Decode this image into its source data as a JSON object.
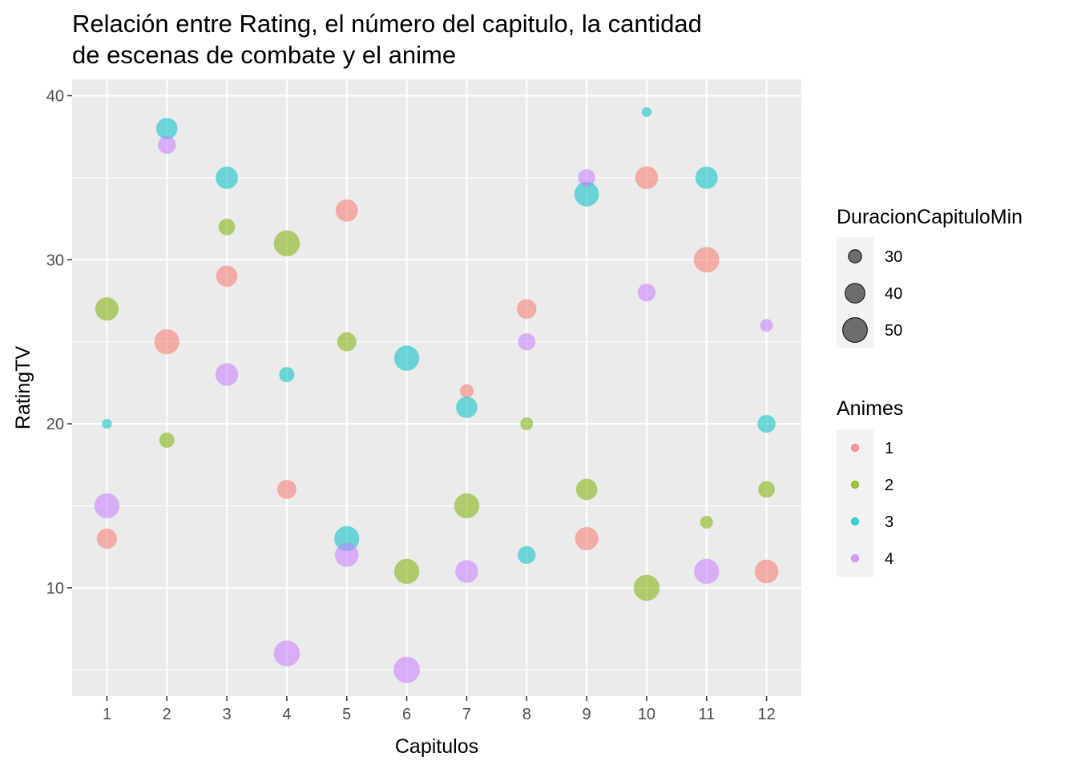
{
  "chart_data": {
    "type": "scatter",
    "title_lines": [
      "Relación entre Rating, el número del capitulo, la cantidad",
      "de escenas de combate y el anime"
    ],
    "xlabel": "Capitulos",
    "ylabel": "RatingTV",
    "xlim": [
      0.42,
      12.58
    ],
    "ylim": [
      3.4,
      41.0
    ],
    "x_ticks": [
      1,
      2,
      3,
      4,
      5,
      6,
      7,
      8,
      9,
      10,
      11,
      12
    ],
    "y_ticks": [
      10,
      20,
      30,
      40
    ],
    "grid": true,
    "legend_position": "right",
    "size_legend": {
      "title": "DuracionCapituloMin",
      "entries": [
        {
          "label": "30",
          "value": 30
        },
        {
          "label": "40",
          "value": 40
        },
        {
          "label": "50",
          "value": 50
        }
      ]
    },
    "color_legend": {
      "title": "Animes",
      "entries": [
        {
          "label": "1",
          "color": "#F8766D"
        },
        {
          "label": "2",
          "color": "#7CAE00"
        },
        {
          "label": "3",
          "color": "#00BFC4"
        },
        {
          "label": "4",
          "color": "#C77CFF"
        }
      ]
    },
    "series": [
      {
        "anime": "1",
        "color": "#F8766D",
        "points": [
          {
            "x": 1,
            "y": 13,
            "duration": 40
          },
          {
            "x": 2,
            "y": 25,
            "duration": 50
          },
          {
            "x": 3,
            "y": 29,
            "duration": 42
          },
          {
            "x": 4,
            "y": 16,
            "duration": 38
          },
          {
            "x": 5,
            "y": 33,
            "duration": 44
          },
          {
            "x": 7,
            "y": 22,
            "duration": 30
          },
          {
            "x": 8,
            "y": 27,
            "duration": 39
          },
          {
            "x": 9,
            "y": 13,
            "duration": 46
          },
          {
            "x": 10,
            "y": 35,
            "duration": 45
          },
          {
            "x": 11,
            "y": 30,
            "duration": 51
          },
          {
            "x": 12,
            "y": 11,
            "duration": 47
          }
        ]
      },
      {
        "anime": "2",
        "color": "#7CAE00",
        "points": [
          {
            "x": 1,
            "y": 27,
            "duration": 46
          },
          {
            "x": 2,
            "y": 19,
            "duration": 32
          },
          {
            "x": 3,
            "y": 32,
            "duration": 34
          },
          {
            "x": 4,
            "y": 31,
            "duration": 52
          },
          {
            "x": 5,
            "y": 25,
            "duration": 38
          },
          {
            "x": 6,
            "y": 11,
            "duration": 50
          },
          {
            "x": 7,
            "y": 15,
            "duration": 50
          },
          {
            "x": 8,
            "y": 20,
            "duration": 29
          },
          {
            "x": 9,
            "y": 16,
            "duration": 42
          },
          {
            "x": 10,
            "y": 10,
            "duration": 52
          },
          {
            "x": 11,
            "y": 14,
            "duration": 29
          },
          {
            "x": 12,
            "y": 16,
            "duration": 34
          }
        ]
      },
      {
        "anime": "3",
        "color": "#00BFC4",
        "points": [
          {
            "x": 1,
            "y": 20,
            "duration": 26
          },
          {
            "x": 2,
            "y": 38,
            "duration": 42
          },
          {
            "x": 3,
            "y": 35,
            "duration": 44
          },
          {
            "x": 4,
            "y": 23,
            "duration": 32
          },
          {
            "x": 5,
            "y": 13,
            "duration": 50
          },
          {
            "x": 6,
            "y": 24,
            "duration": 50
          },
          {
            "x": 7,
            "y": 21,
            "duration": 42
          },
          {
            "x": 8,
            "y": 12,
            "duration": 36
          },
          {
            "x": 9,
            "y": 34,
            "duration": 49
          },
          {
            "x": 10,
            "y": 39,
            "duration": 26
          },
          {
            "x": 11,
            "y": 35,
            "duration": 44
          },
          {
            "x": 12,
            "y": 20,
            "duration": 36
          }
        ]
      },
      {
        "anime": "4",
        "color": "#C77CFF",
        "points": [
          {
            "x": 1,
            "y": 15,
            "duration": 50
          },
          {
            "x": 2,
            "y": 37,
            "duration": 36
          },
          {
            "x": 3,
            "y": 23,
            "duration": 45
          },
          {
            "x": 4,
            "y": 6,
            "duration": 52
          },
          {
            "x": 5,
            "y": 12,
            "duration": 47
          },
          {
            "x": 6,
            "y": 5,
            "duration": 53
          },
          {
            "x": 7,
            "y": 11,
            "duration": 45
          },
          {
            "x": 8,
            "y": 25,
            "duration": 35
          },
          {
            "x": 9,
            "y": 35,
            "duration": 35
          },
          {
            "x": 10,
            "y": 28,
            "duration": 36
          },
          {
            "x": 11,
            "y": 11,
            "duration": 50
          },
          {
            "x": 12,
            "y": 26,
            "duration": 29
          }
        ]
      }
    ]
  }
}
